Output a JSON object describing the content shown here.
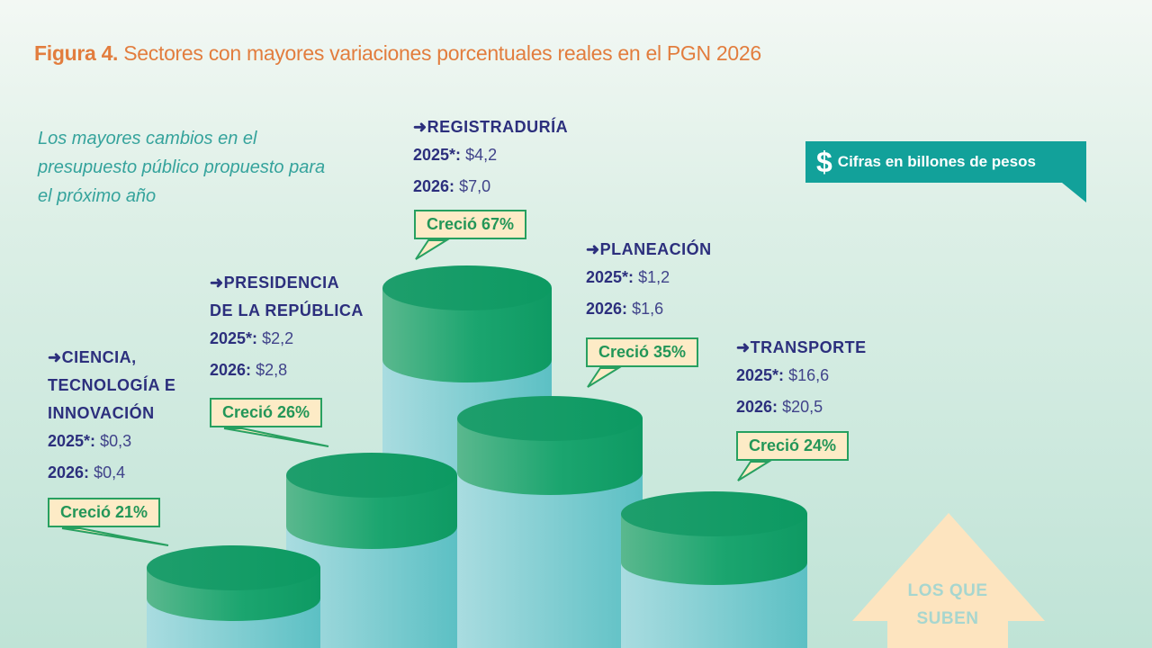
{
  "title": {
    "prefix": "Figura 4.",
    "text": " Sectores con mayores variaciones porcentuales reales en el PGN 2026"
  },
  "intro": "Los mayores cambios en el presupuesto público propuesto para el próximo año",
  "units": {
    "icon": "dollar-icon",
    "text": "Cifras en billones de pesos"
  },
  "arrow": {
    "line1": "LOS QUE",
    "line2": "SUBEN"
  },
  "colors": {
    "title": "#e27d3e",
    "label": "#2c2f7d",
    "cylinder_top": "#1fa36f",
    "cylinder_body": "#8fd3d8",
    "callout_border": "#27a060",
    "callout_fill": "#fdebc6",
    "badge": "#12a19a"
  },
  "chart_data": {
    "type": "bar",
    "categories": [
      "CIENCIA, TECNOLOGÍA E INNOVACIÓN",
      "PRESIDENCIA DE LA REPÚBLICA",
      "REGISTRADURÍA",
      "PLANEACIÓN",
      "TRANSPORTE"
    ],
    "series": [
      {
        "name": "2025*",
        "values": [
          0.3,
          2.2,
          4.2,
          1.2,
          16.6
        ]
      },
      {
        "name": "2026",
        "values": [
          0.4,
          2.8,
          7.0,
          1.6,
          20.5
        ]
      }
    ],
    "growth_pct": [
      21,
      26,
      67,
      35,
      24
    ],
    "sectors": [
      {
        "name1": "CIENCIA,",
        "name2": "TECNOLOGÍA E",
        "name3": "INNOVACIÓN",
        "k1": "2025*:",
        "v1": "$0,3",
        "k2": "2026:",
        "v2": "$0,4",
        "growth": "Creció 21%"
      },
      {
        "name1": "PRESIDENCIA",
        "name2": "DE LA REPÚBLICA",
        "k1": "2025*:",
        "v1": "$2,2",
        "k2": "2026:",
        "v2": "$2,8",
        "growth": "Creció 26%"
      },
      {
        "name1": "REGISTRADURÍA",
        "k1": "2025*:",
        "v1": "$4,2",
        "k2": "2026:",
        "v2": "$7,0",
        "growth": "Creció 67%"
      },
      {
        "name1": "PLANEACIÓN",
        "k1": "2025*:",
        "v1": "$1,2",
        "k2": "2026:",
        "v2": "$1,6",
        "growth": "Creció 35%"
      },
      {
        "name1": "TRANSPORTE",
        "k1": "2025*:",
        "v1": "$16,6",
        "k2": "2026:",
        "v2": "$20,5",
        "growth": "Creció 24%"
      }
    ]
  }
}
